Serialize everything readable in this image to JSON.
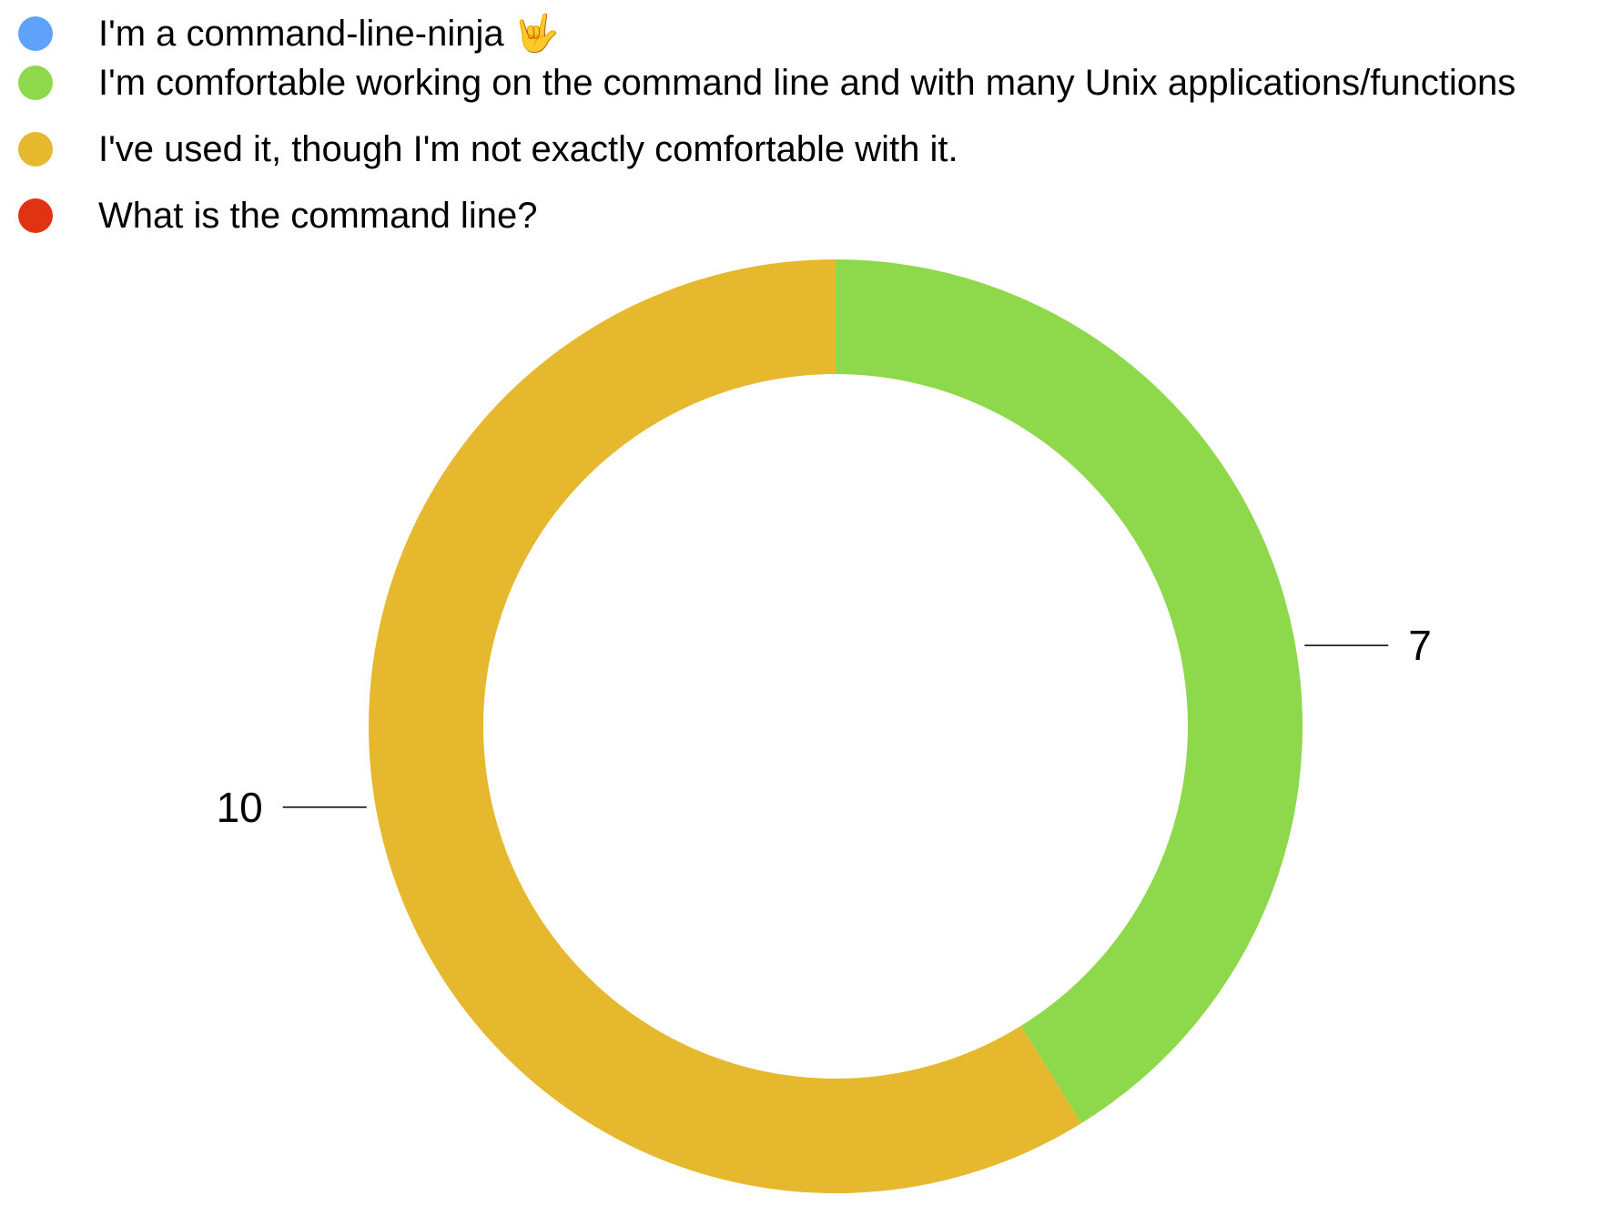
{
  "chart_data": {
    "type": "pie",
    "style": "donut",
    "title": "",
    "categories": [
      "I'm a command-line-ninja 🤟",
      "I'm comfortable working on the command line and with many Unix applications/functions",
      "I've used it, though I'm not exactly comfortable with it.",
      "What is the command line?"
    ],
    "values": [
      0,
      7,
      10,
      0
    ],
    "colors": [
      "#5ea2fb",
      "#8ed84b",
      "#e6b82e",
      "#e03314"
    ],
    "data_labels": [
      "",
      "7",
      "10",
      ""
    ],
    "legend_position": "top-left"
  }
}
